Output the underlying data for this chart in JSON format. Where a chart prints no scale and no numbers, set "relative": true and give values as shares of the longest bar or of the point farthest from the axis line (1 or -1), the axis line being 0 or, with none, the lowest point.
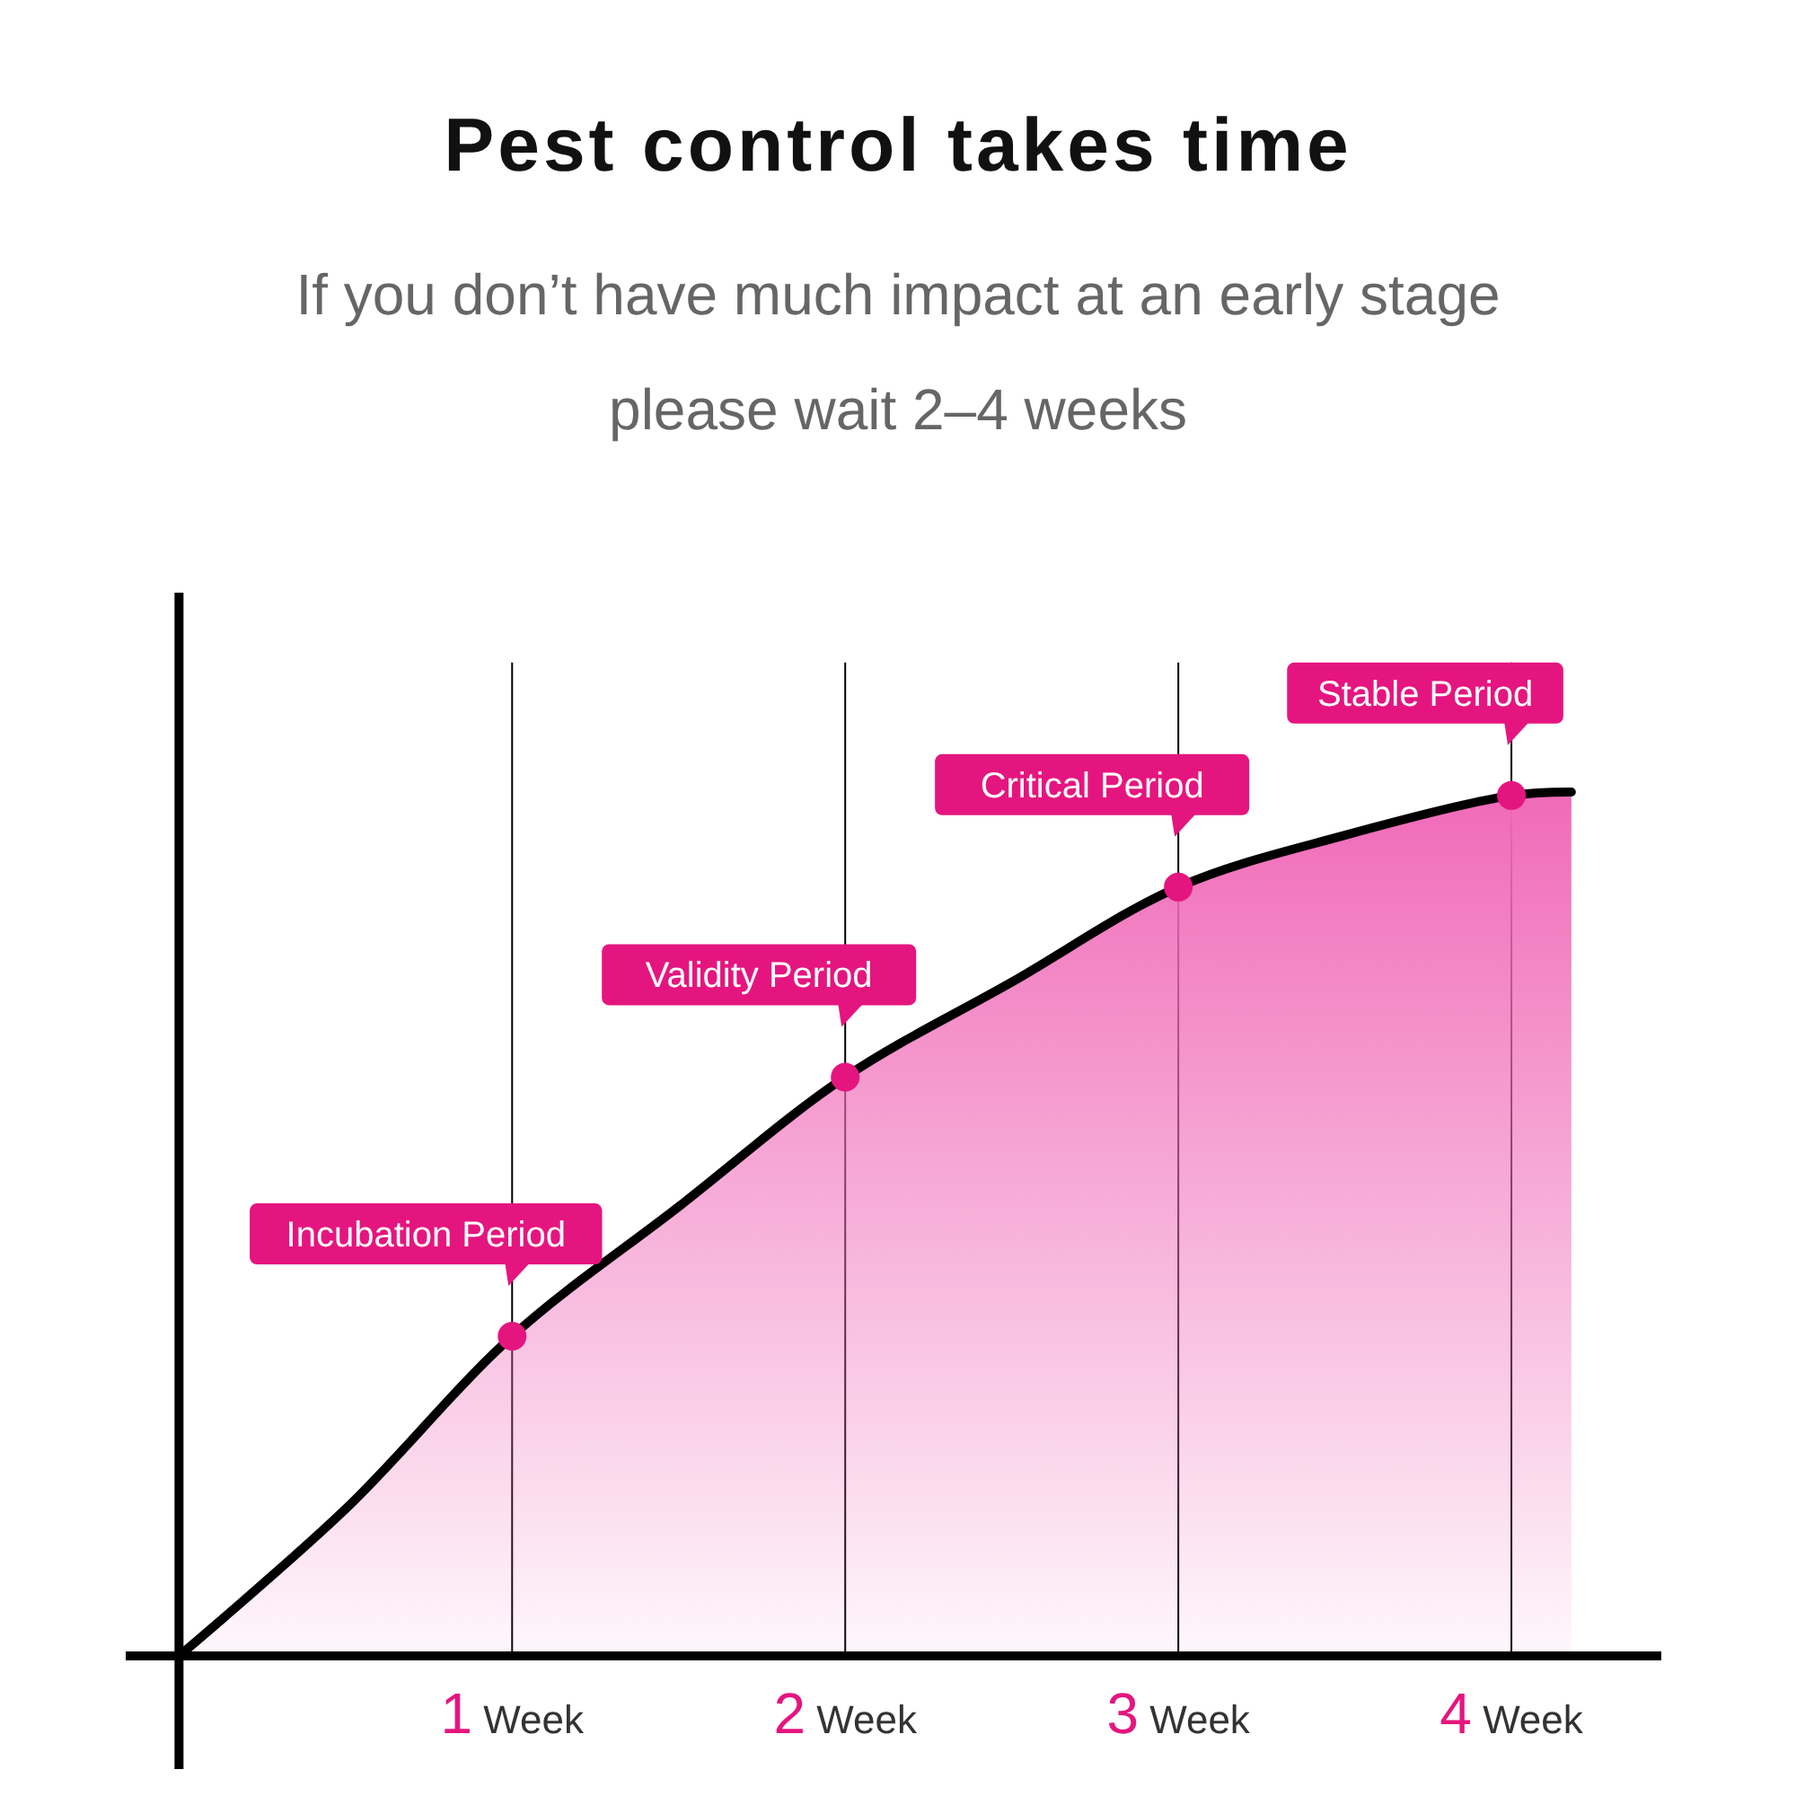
{
  "chart_data": {
    "type": "area",
    "title": "Pest control takes time",
    "subtitle": "If you don’t have much impact at an early stage\nplease wait 2–4 weeks",
    "relative": true,
    "xlim": [
      -0.16,
      4.45
    ],
    "xticks": [
      {
        "value": 1,
        "label": "1 Week"
      },
      {
        "value": 2,
        "label": "2 Week"
      },
      {
        "value": 3,
        "label": "3 Week"
      },
      {
        "value": 4,
        "label": "4 Week"
      }
    ],
    "grid": "x",
    "series": [
      {
        "type": "area",
        "color": "#f06ab8",
        "x": [
          0,
          0.5,
          1,
          1.5,
          2,
          2.5,
          3,
          3.5,
          4,
          4.18
        ],
        "values": [
          0,
          0.17,
          0.37,
          0.52,
          0.67,
          0.78,
          0.89,
          0.95,
          0.996,
          1
        ]
      },
      {
        "type": "scatter",
        "color": "#e5157f",
        "marker": "circle",
        "x": [
          1,
          2,
          3,
          4
        ],
        "values": [
          0.37,
          0.67,
          0.89,
          0.996
        ]
      }
    ],
    "annotations": [
      {
        "text": "Incubation Period",
        "x": 1,
        "y": 0.37
      },
      {
        "text": "Validity Period",
        "x": 2,
        "y": 0.67
      },
      {
        "text": "Critical Period",
        "x": 3,
        "y": 0.89
      },
      {
        "text": "Stable Period",
        "x": 4,
        "y": 0.996
      }
    ]
  }
}
